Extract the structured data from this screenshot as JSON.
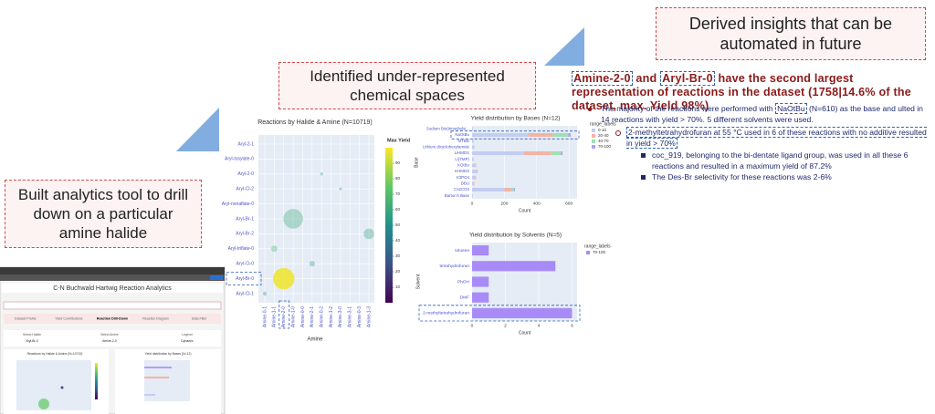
{
  "callouts": {
    "insights": "Derived insights that can be automated in future",
    "spaces": "Identified under-represented chemical spaces",
    "tool": "Built analytics tool to drill down on a particular amine halide"
  },
  "insight": {
    "amine": "Amine-2-0",
    "connector": "and",
    "halide": "Aryl-Br-0",
    "rest": "have the second largest representation of reactions in the dataset (1758|14.6% of the dataset,  max. Yield 98%)",
    "bullet_pre": "The majority of the reactions were performed with",
    "bullet_base": "NaOtBu",
    "bullet_post": "(N=610) as the base and ulted in 14 reactions with yield > 70%. 5 different solvents were used.",
    "sub": "2-methyltetrahydrofuran at 55 °C used in 6 of these reactions with no additive resulted in yield > 70%",
    "subsub": [
      "coc_919, belonging to the bi-dentate ligand group, was used in all these 6 reactions and resulted in a maximum yield of 87.2%",
      "The Des-Br selectivity for these reactions was 2-6%"
    ]
  },
  "bubble_chart": {
    "title": "Reactions by Halide & Amine (N=10719)",
    "x_label": "Amine",
    "halides": [
      "Aryl-2-1",
      "Aryl-tosylate-0",
      "Aryl-2-0",
      "Aryl-Cl-2",
      "Aryl-nonaflate-0",
      "Aryl-Br-1",
      "Aryl-Br-2",
      "Aryl-triflate-0",
      "Aryl-Cl-0",
      "Aryl-Br-0",
      "Aryl-Cl-1"
    ],
    "amines": [
      "Amine-0-1",
      "Amine-1-1",
      "Amine-2-0",
      "Amine-1-0",
      "Amine-0-0",
      "Amine-2-1",
      "Amine-0-2",
      "Amine-1-2",
      "Amine-3-0",
      "Amine-3-1",
      "Amine-0-3",
      "Amine-1-3"
    ],
    "colorbar_title": "Max Yield",
    "colorbar_lim": [
      0,
      100
    ],
    "colorbar_ticks": [
      10,
      20,
      30,
      40,
      50,
      60,
      70,
      80,
      90
    ],
    "points": [
      {
        "amine": "Amine-2-0",
        "halide": "Aryl-Br-0",
        "count": 1758,
        "max_yield": 98
      },
      {
        "amine": "Amine-1-0",
        "halide": "Aryl-Br-1",
        "count": 1500,
        "max_yield": 62
      },
      {
        "amine": "Amine-1-3",
        "halide": "Aryl-Br-2",
        "count": 420,
        "max_yield": 58
      },
      {
        "amine": "Amine-1-1",
        "halide": "Aryl-triflate-0",
        "count": 150,
        "max_yield": 65
      },
      {
        "amine": "Amine-2-1",
        "halide": "Aryl-Cl-0",
        "count": 120,
        "max_yield": 55
      },
      {
        "amine": "Amine-0-2",
        "halide": "Aryl-2-0",
        "count": 40,
        "max_yield": 60
      },
      {
        "amine": "Amine-3-0",
        "halide": "Aryl-Cl-2",
        "count": 30,
        "max_yield": 45
      },
      {
        "amine": "Amine-0-1",
        "halide": "Aryl-Cl-1",
        "count": 60,
        "max_yield": 50
      }
    ]
  },
  "bases_chart": {
    "title": "Yield distribution by Bases (N=12)",
    "y_label": "Base",
    "x_label": "Count",
    "legend_title": "range_labels",
    "categories": [
      "Sodium Bis(trimethylsi...",
      "NaOtBu",
      "MTBD",
      "Lithium dicyclohexylamide",
      "LiHMDS",
      "Li(TMP)",
      "KOtBu",
      "KHMDS",
      "K3PO4",
      "DBU",
      "Cs2CO3",
      "Barton's Base"
    ],
    "series": [
      {
        "name": "0-10",
        "color": "#c3cdf2",
        "values": [
          5,
          350,
          10,
          15,
          320,
          10,
          20,
          30,
          20,
          10,
          200,
          5
        ]
      },
      {
        "name": "20-40",
        "color": "#f4b3a4",
        "values": [
          0,
          150,
          0,
          0,
          170,
          0,
          5,
          5,
          5,
          5,
          40,
          0
        ]
      },
      {
        "name": "40-70",
        "color": "#9fe0b4",
        "values": [
          0,
          96,
          0,
          0,
          60,
          0,
          0,
          0,
          0,
          0,
          20,
          0
        ]
      },
      {
        "name": "70-100",
        "color": "#b49cf5",
        "values": [
          0,
          14,
          0,
          0,
          10,
          0,
          0,
          0,
          0,
          0,
          5,
          0
        ]
      }
    ],
    "xlim": [
      0,
      650
    ],
    "xticks": [
      0,
      200,
      400,
      600
    ]
  },
  "solvents_chart": {
    "title": "Yield distribution by Solvents (N=5)",
    "y_label": "Solvent",
    "x_label": "Count",
    "legend_title": "range_labels",
    "categories": [
      "toluene",
      "tetrahydrofuran",
      "PhOH",
      "DMF",
      "2-methyltetrahydrofuran"
    ],
    "series": [
      {
        "name": "70-100",
        "color": "#a88bf7",
        "values": [
          1,
          5,
          1,
          1,
          6
        ]
      }
    ],
    "xlim": [
      0,
      6.3
    ],
    "xticks": [
      0,
      2,
      4,
      6
    ]
  },
  "app": {
    "title": "C-N Buchwald Hartwig Reaction Analytics",
    "tabs": [
      "Dataset Profile",
      "Yield Contributions",
      "Reaction Drill-Down",
      "Reaction Diagram",
      "Data Filter"
    ],
    "filters": [
      "Select Halide",
      "Select Amine",
      "Legend"
    ],
    "filter_values": [
      "Aryl-Br-0",
      "Amine-2-0",
      "Dynamic"
    ]
  }
}
